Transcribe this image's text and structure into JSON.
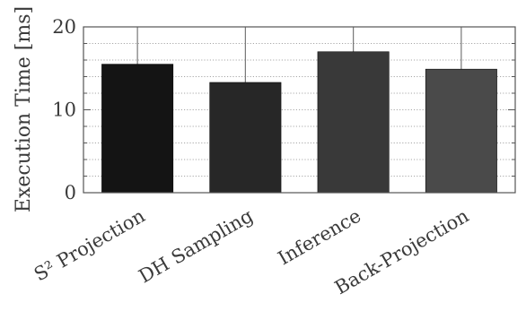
{
  "chart_data": {
    "type": "bar",
    "title": "",
    "xlabel": "",
    "ylabel": "Execution Time [ms]",
    "ylim": [
      0,
      20
    ],
    "yticks": [
      0,
      10,
      20
    ],
    "y_minor_step": 2,
    "grid": "horizontal dotted",
    "categories": [
      "S² Projection",
      "DH Sampling",
      "Inference",
      "Back-Projection"
    ],
    "values": [
      15.5,
      13.3,
      17.0,
      14.9
    ],
    "bar_colors": [
      "#141414",
      "#272727",
      "#393939",
      "#4a4a4a"
    ]
  }
}
